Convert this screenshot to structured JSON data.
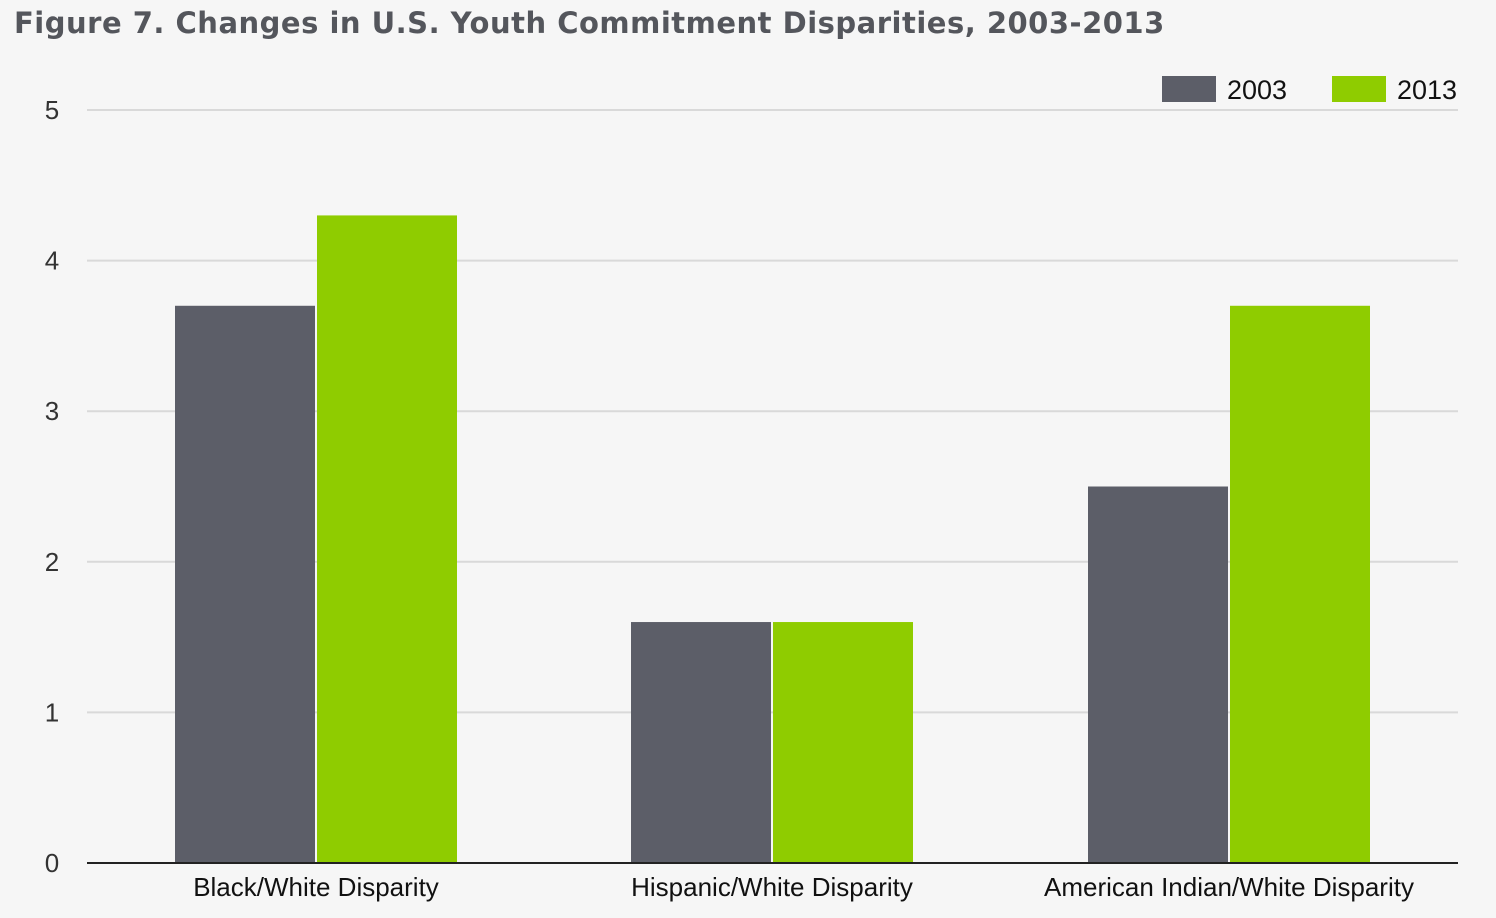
{
  "colors": {
    "background": "#f6f6f6",
    "gridline": "#d9d9d9",
    "axis": "#222222",
    "series_2003": "#5c5e68",
    "series_2013": "#8fcc00"
  },
  "chart_data": {
    "type": "bar",
    "title": "Figure 7. Changes in U.S. Youth Commitment Disparities, 2003-2013",
    "xlabel": "",
    "ylabel": "",
    "categories": [
      "Black/White Disparity",
      "Hispanic/White Disparity",
      "American Indian/White Disparity"
    ],
    "series": [
      {
        "name": "2003",
        "color": "#5c5e68",
        "values": [
          3.7,
          1.6,
          2.5
        ]
      },
      {
        "name": "2013",
        "color": "#8fcc00",
        "values": [
          4.3,
          1.6,
          3.7
        ]
      }
    ],
    "ylim": [
      0,
      5
    ],
    "yticks": [
      "0",
      "1",
      "2",
      "3",
      "4",
      "5"
    ],
    "grid": true,
    "legend": "top-right"
  }
}
